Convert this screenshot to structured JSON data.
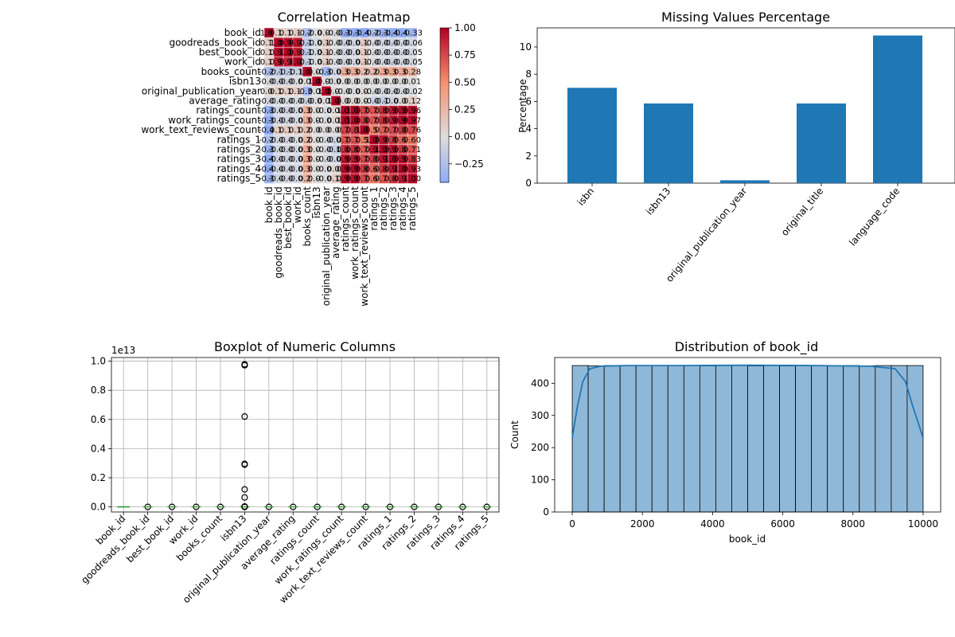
{
  "chart_data": [
    {
      "type": "heatmap",
      "title": "Correlation Heatmap",
      "labels": [
        "book_id",
        "goodreads_book_id",
        "best_book_id",
        "work_id",
        "books_count",
        "isbn13",
        "original_publication_year",
        "average_rating",
        "ratings_count",
        "work_ratings_count",
        "work_text_reviews_count",
        "ratings_1",
        "ratings_2",
        "ratings_3",
        "ratings_4",
        "ratings_5"
      ],
      "matrix": [
        [
          1.0,
          0.12,
          0.1,
          0.11,
          -0.26,
          -0.01,
          0.05,
          -0.04,
          -0.37,
          -0.38,
          -0.42,
          -0.24,
          -0.35,
          -0.41,
          -0.41,
          -0.33
        ],
        [
          0.12,
          1.0,
          0.97,
          0.93,
          -0.16,
          -0.05,
          0.13,
          -0.02,
          -0.07,
          -0.06,
          0.12,
          -0.04,
          -0.06,
          -0.08,
          -0.06,
          -0.06
        ],
        [
          0.1,
          0.97,
          1.0,
          0.9,
          -0.16,
          -0.05,
          0.13,
          -0.02,
          -0.07,
          -0.06,
          0.13,
          -0.03,
          -0.06,
          -0.07,
          -0.05,
          -0.05
        ],
        [
          0.11,
          0.93,
          0.9,
          1.0,
          -0.11,
          -0.02,
          0.11,
          -0.02,
          -0.06,
          -0.05,
          0.13,
          -0.03,
          -0.05,
          -0.07,
          -0.05,
          -0.05
        ],
        [
          -0.26,
          -0.16,
          -0.16,
          -0.11,
          1.0,
          0.02,
          -0.32,
          -0.07,
          0.32,
          0.33,
          0.2,
          0.23,
          0.33,
          0.38,
          0.35,
          0.28
        ],
        [
          -0.01,
          -0.05,
          -0.05,
          -0.02,
          0.02,
          1.0,
          -0.0,
          -0.03,
          0.01,
          0.01,
          0.01,
          0.01,
          0.01,
          0.01,
          0.01,
          0.01
        ],
        [
          0.05,
          0.13,
          0.13,
          0.11,
          -0.32,
          -0.0,
          1.0,
          0.02,
          -0.02,
          -0.03,
          0.03,
          -0.02,
          -0.04,
          -0.04,
          -0.03,
          -0.02
        ],
        [
          -0.04,
          -0.02,
          -0.02,
          -0.02,
          -0.07,
          -0.03,
          0.02,
          1.0,
          0.04,
          0.05,
          0.01,
          -0.08,
          -0.12,
          -0.07,
          0.04,
          0.12
        ],
        [
          -0.37,
          -0.07,
          -0.07,
          -0.06,
          0.32,
          0.01,
          -0.02,
          0.04,
          1.0,
          1.0,
          0.78,
          0.72,
          0.85,
          0.94,
          0.98,
          0.96
        ],
        [
          -0.38,
          -0.06,
          -0.06,
          -0.05,
          0.33,
          0.01,
          -0.03,
          0.05,
          1.0,
          1.0,
          0.81,
          0.72,
          0.85,
          0.94,
          0.99,
          0.97
        ],
        [
          -0.42,
          0.12,
          0.13,
          0.13,
          0.2,
          0.01,
          0.03,
          0.01,
          0.78,
          0.81,
          1.0,
          0.57,
          0.7,
          0.76,
          0.82,
          0.76
        ],
        [
          -0.24,
          -0.04,
          -0.03,
          -0.03,
          0.23,
          0.01,
          -0.02,
          -0.08,
          0.72,
          0.72,
          0.57,
          1.0,
          0.93,
          0.8,
          0.67,
          0.6
        ],
        [
          -0.35,
          -0.06,
          -0.06,
          -0.05,
          0.33,
          0.01,
          -0.04,
          -0.12,
          0.85,
          0.85,
          0.7,
          0.93,
          1.0,
          0.95,
          0.84,
          0.71
        ],
        [
          -0.41,
          -0.08,
          -0.07,
          -0.07,
          0.38,
          0.01,
          -0.04,
          -0.07,
          0.94,
          0.94,
          0.76,
          0.8,
          0.95,
          1.0,
          0.95,
          0.83
        ],
        [
          -0.41,
          -0.06,
          -0.05,
          -0.05,
          0.35,
          0.01,
          -0.03,
          0.04,
          0.98,
          0.99,
          0.82,
          0.67,
          0.84,
          0.95,
          1.0,
          0.93
        ],
        [
          -0.33,
          -0.06,
          -0.05,
          -0.05,
          0.28,
          0.01,
          -0.02,
          0.12,
          0.96,
          0.97,
          0.76,
          0.6,
          0.71,
          0.83,
          0.93,
          1.0
        ]
      ],
      "colormap": "coolwarm (blue negative, red positive)",
      "colorbar": {
        "ticks": [
          -0.25,
          0.0,
          0.25,
          0.5,
          0.75,
          1.0
        ],
        "range": [
          -0.42,
          1.0
        ]
      }
    },
    {
      "type": "bar",
      "title": "Missing Values Percentage",
      "categories": [
        "isbn",
        "isbn13",
        "original_publication_year",
        "original_title",
        "language_code"
      ],
      "values": [
        7.0,
        5.85,
        0.21,
        5.85,
        10.84
      ],
      "xlabel": "",
      "ylabel": "Percentage",
      "ylim": [
        0,
        11.4
      ],
      "yticks": [
        0,
        2,
        4,
        6,
        8,
        10
      ],
      "color": "#1f77b4"
    },
    {
      "type": "boxplot",
      "title": "Boxplot of Numeric Columns",
      "categories": [
        "book_id",
        "goodreads_book_id",
        "best_book_id",
        "work_id",
        "books_count",
        "isbn13",
        "original_publication_year",
        "average_rating",
        "ratings_count",
        "work_ratings_count",
        "work_text_reviews_count",
        "ratings_1",
        "ratings_2",
        "ratings_3",
        "ratings_4",
        "ratings_5"
      ],
      "scale_label": "1e13",
      "ylim": [
        -0.035,
        1.025
      ],
      "yticks": [
        0.0,
        0.2,
        0.4,
        0.6,
        0.8,
        1.0
      ],
      "isbn13_outliers": [
        0.978,
        0.975,
        0.972,
        0.62,
        0.295,
        0.29,
        0.12,
        0.065,
        0.0,
        0.003
      ],
      "grid": true
    },
    {
      "type": "histogram",
      "title": "Distribution of book_id",
      "xlabel": "book_id",
      "ylabel": "Count",
      "bins": [
        0,
        454.5,
        909,
        1363.6,
        1818.2,
        2272.7,
        2727.3,
        3181.8,
        3636.4,
        4090.9,
        4545.5,
        5000,
        5454.5,
        5909.1,
        6363.6,
        6818.2,
        7272.7,
        7727.3,
        8181.8,
        8636.4,
        9090.9,
        9545.5,
        10000
      ],
      "counts": [
        455,
        454,
        455,
        454,
        455,
        455,
        454,
        455,
        454,
        455,
        455,
        454,
        455,
        454,
        455,
        455,
        454,
        455,
        454,
        455,
        455,
        455
      ],
      "kde": [
        [
          0,
          230
        ],
        [
          150,
          330
        ],
        [
          300,
          405
        ],
        [
          500,
          445
        ],
        [
          800,
          453
        ],
        [
          1500,
          455
        ],
        [
          3000,
          455
        ],
        [
          5000,
          456
        ],
        [
          7000,
          455
        ],
        [
          8500,
          453
        ],
        [
          9200,
          445
        ],
        [
          9500,
          405
        ],
        [
          9700,
          330
        ],
        [
          10000,
          230
        ]
      ],
      "xlim": [
        -500,
        10500
      ],
      "ylim": [
        0,
        480
      ],
      "xticks": [
        0,
        2000,
        4000,
        6000,
        8000,
        10000
      ],
      "yticks": [
        0,
        100,
        200,
        300,
        400
      ],
      "bar_color": "#8fb8d8",
      "line_color": "#1f77b4"
    }
  ]
}
